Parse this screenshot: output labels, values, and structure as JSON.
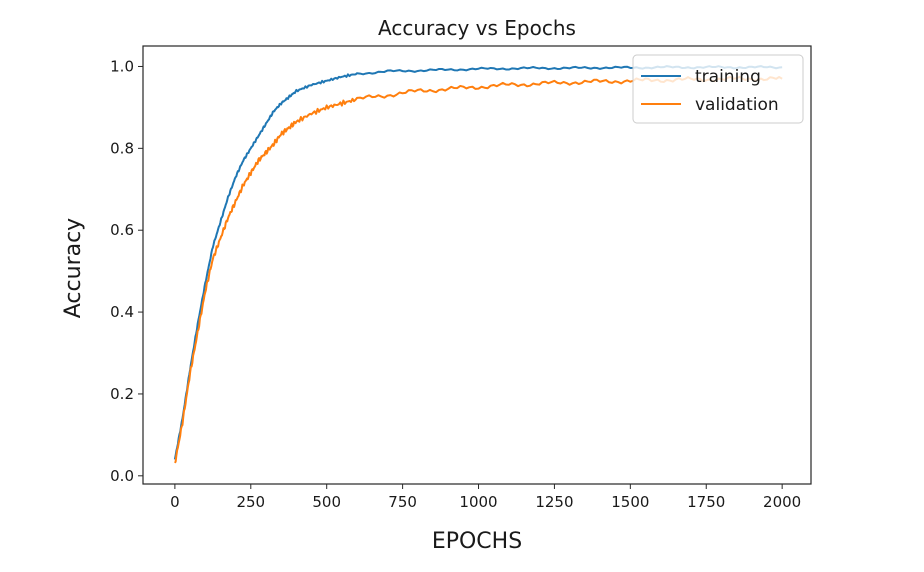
{
  "chart_data": {
    "type": "line",
    "title": "Accuracy vs Epochs",
    "xlabel": "EPOCHS",
    "ylabel": "Accuracy",
    "xlim": [
      -105,
      2095
    ],
    "ylim": [
      -0.02,
      1.05
    ],
    "xticks": [
      0,
      250,
      500,
      750,
      1000,
      1250,
      1500,
      1750,
      2000
    ],
    "yticks": [
      0.0,
      0.2,
      0.4,
      0.6,
      0.8,
      1.0
    ],
    "ytick_labels": [
      "0.0",
      "0.2",
      "0.4",
      "0.6",
      "0.8",
      "1.0"
    ],
    "grid": false,
    "legend_position": "top-right",
    "series": [
      {
        "name": "training",
        "color": "#1f77b4",
        "x": [
          0,
          25,
          50,
          75,
          100,
          125,
          150,
          175,
          200,
          225,
          250,
          275,
          300,
          325,
          350,
          375,
          400,
          450,
          500,
          550,
          600,
          700,
          800,
          900,
          1000,
          1100,
          1200,
          1300,
          1400,
          1500,
          1600,
          1700,
          1800,
          1900,
          2000
        ],
        "y": [
          0.04,
          0.14,
          0.26,
          0.37,
          0.47,
          0.56,
          0.62,
          0.68,
          0.73,
          0.77,
          0.8,
          0.83,
          0.86,
          0.89,
          0.91,
          0.925,
          0.94,
          0.955,
          0.965,
          0.975,
          0.982,
          0.988,
          0.99,
          0.992,
          0.994,
          0.995,
          0.996,
          0.996,
          0.997,
          0.997,
          0.998,
          0.998,
          0.998,
          0.998,
          0.998
        ]
      },
      {
        "name": "validation",
        "color": "#ff7f0e",
        "x": [
          0,
          25,
          50,
          75,
          100,
          125,
          150,
          175,
          200,
          225,
          250,
          275,
          300,
          325,
          350,
          375,
          400,
          450,
          500,
          550,
          600,
          700,
          800,
          900,
          1000,
          1100,
          1200,
          1300,
          1400,
          1500,
          1600,
          1700,
          1800,
          1900,
          2000
        ],
        "y": [
          0.03,
          0.13,
          0.25,
          0.35,
          0.45,
          0.53,
          0.58,
          0.63,
          0.67,
          0.71,
          0.74,
          0.77,
          0.79,
          0.81,
          0.835,
          0.85,
          0.865,
          0.885,
          0.9,
          0.91,
          0.92,
          0.93,
          0.94,
          0.945,
          0.95,
          0.955,
          0.958,
          0.961,
          0.963,
          0.965,
          0.967,
          0.968,
          0.969,
          0.97,
          0.97
        ]
      }
    ]
  }
}
